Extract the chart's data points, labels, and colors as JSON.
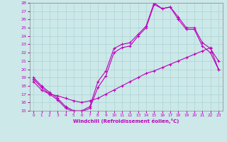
{
  "xlabel": "Windchill (Refroidissement éolien,°C)",
  "xlim": [
    -0.5,
    23.5
  ],
  "ylim": [
    15,
    28
  ],
  "yticks": [
    15,
    16,
    17,
    18,
    19,
    20,
    21,
    22,
    23,
    24,
    25,
    26,
    27,
    28
  ],
  "xticks": [
    0,
    1,
    2,
    3,
    4,
    5,
    6,
    7,
    8,
    9,
    10,
    11,
    12,
    13,
    14,
    15,
    16,
    17,
    18,
    19,
    20,
    21,
    22,
    23
  ],
  "background_color": "#cce8e8",
  "line_color": "#bb00bb",
  "grid_color": "#aad4d4",
  "line1_x": [
    0,
    1,
    2,
    3,
    4,
    5,
    6,
    7,
    8,
    9,
    10,
    11,
    12,
    13,
    14,
    15,
    16,
    17,
    18,
    19,
    20,
    21,
    22,
    23
  ],
  "line1_y": [
    19.0,
    18.0,
    17.2,
    16.5,
    15.5,
    15.0,
    15.0,
    15.5,
    18.5,
    19.8,
    22.5,
    23.0,
    23.2,
    24.2,
    25.2,
    28.0,
    27.3,
    27.5,
    26.3,
    25.0,
    25.0,
    23.2,
    22.5,
    21.0
  ],
  "line2_x": [
    0,
    1,
    2,
    3,
    4,
    5,
    6,
    7,
    8,
    9,
    10,
    11,
    12,
    13,
    14,
    15,
    16,
    17,
    18,
    19,
    20,
    21,
    22,
    23
  ],
  "line2_y": [
    18.8,
    17.8,
    17.0,
    16.3,
    15.3,
    14.9,
    14.9,
    15.3,
    17.8,
    19.2,
    22.0,
    22.6,
    22.8,
    24.0,
    25.0,
    27.8,
    27.3,
    27.5,
    26.0,
    24.8,
    24.8,
    22.8,
    22.0,
    20.0
  ],
  "line3_x": [
    0,
    1,
    2,
    3,
    4,
    5,
    6,
    7,
    8,
    9,
    10,
    11,
    12,
    13,
    14,
    15,
    16,
    17,
    18,
    19,
    20,
    21,
    22,
    23
  ],
  "line3_y": [
    18.5,
    17.5,
    17.0,
    16.8,
    16.5,
    16.2,
    16.0,
    16.2,
    16.5,
    17.0,
    17.5,
    18.0,
    18.5,
    19.0,
    19.5,
    19.8,
    20.2,
    20.6,
    21.0,
    21.4,
    21.8,
    22.2,
    22.6,
    20.0
  ]
}
